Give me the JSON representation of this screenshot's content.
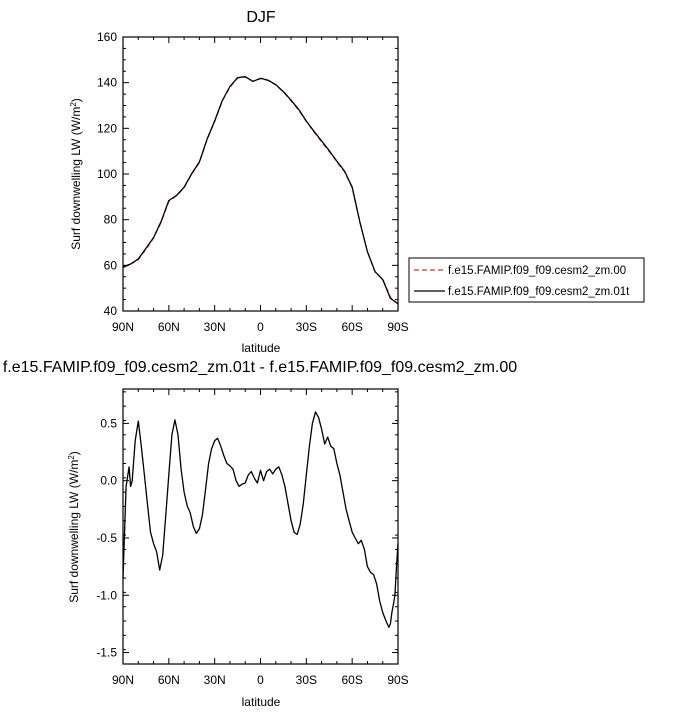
{
  "chart_data": [
    {
      "type": "line",
      "title": "DJF",
      "xlabel": "latitude",
      "ylabel": "Surf downwelling LW (W/m",
      "ylabel_sup": "2",
      "ylabel_close": ")",
      "x_ticks": [
        "90N",
        "60N",
        "30N",
        "0",
        "30S",
        "60S",
        "90S"
      ],
      "y_ticks": [
        "40",
        "60",
        "80",
        "100",
        "120",
        "140",
        "160"
      ],
      "xlim": [
        90,
        -90
      ],
      "ylim": [
        40,
        160
      ],
      "grid": false,
      "legend_position": "right",
      "series": [
        {
          "name": "f.e15.FAMIP.f09_f09.cesm2_zm.00",
          "color": "#e03030",
          "dash": "dashed",
          "x": [
            90,
            85,
            80,
            75,
            70,
            65,
            60,
            55,
            50,
            45,
            40,
            35,
            30,
            25,
            20,
            15,
            10,
            5,
            3,
            0,
            -5,
            -10,
            -15,
            -20,
            -25,
            -30,
            -35,
            -40,
            -45,
            -50,
            -55,
            -60,
            -65,
            -70,
            -75,
            -80,
            -85,
            -90
          ],
          "values": [
            59,
            60.5,
            62.5,
            67,
            72,
            79,
            88,
            90.5,
            94,
            100,
            105,
            115,
            123,
            132,
            138,
            142,
            142.5,
            140.5,
            141,
            141.8,
            141,
            139,
            136,
            132,
            128,
            123,
            118.5,
            114,
            109.8,
            105.3,
            101,
            94,
            79,
            66,
            57,
            54,
            46,
            43
          ]
        },
        {
          "name": "f.e15.FAMIP.f09_f09.cesm2_zm.01t",
          "color": "#000000",
          "dash": "solid",
          "x": [
            90,
            85,
            80,
            75,
            70,
            65,
            60,
            55,
            50,
            45,
            40,
            35,
            30,
            25,
            20,
            15,
            10,
            5,
            3,
            0,
            -5,
            -10,
            -15,
            -20,
            -25,
            -30,
            -35,
            -40,
            -45,
            -50,
            -55,
            -60,
            -65,
            -70,
            -75,
            -80,
            -85,
            -90
          ],
          "values": [
            59.3,
            60.6,
            62.8,
            67.4,
            72.2,
            79.3,
            88.4,
            90.6,
            94.2,
            100.2,
            105.3,
            115.2,
            123.3,
            132.2,
            138.3,
            142.2,
            142.6,
            140.6,
            141.1,
            141.9,
            141.1,
            139.1,
            136.1,
            132.3,
            128.3,
            123.2,
            118.7,
            114.5,
            110.2,
            105.6,
            101.3,
            94.2,
            79.1,
            66,
            57.2,
            53.8,
            45.5,
            43.2
          ]
        }
      ]
    },
    {
      "type": "line",
      "title": "f.e15.FAMIP.f09_f09.cesm2_zm.01t - f.e15.FAMIP.f09_f09.cesm2_zm.00",
      "xlabel": "latitude",
      "ylabel": "Surf downwelling LW (W/m",
      "ylabel_sup": "2",
      "ylabel_close": ")",
      "x_ticks": [
        "90N",
        "60N",
        "30N",
        "0",
        "30S",
        "60S",
        "90S"
      ],
      "y_ticks": [
        "-1.5",
        "-1.0",
        "-0.5",
        "0.0",
        "0.5"
      ],
      "xlim": [
        90,
        -90
      ],
      "ylim": [
        -1.6,
        0.8
      ],
      "grid": false,
      "series": [
        {
          "color": "#000000",
          "dash": "solid",
          "x": [
            90,
            88,
            86,
            85,
            84,
            82,
            80,
            78,
            76,
            74,
            72,
            70,
            68,
            66,
            64,
            62,
            60,
            58,
            56,
            54,
            52,
            50,
            48,
            46,
            44,
            42,
            40,
            38,
            36,
            34,
            32,
            30,
            28,
            26,
            24,
            22,
            20,
            18,
            16,
            14,
            12,
            10,
            8,
            6,
            4,
            2,
            0,
            -2,
            -4,
            -6,
            -8,
            -10,
            -12,
            -14,
            -16,
            -18,
            -20,
            -22,
            -24,
            -26,
            -28,
            -30,
            -32,
            -34,
            -36,
            -38,
            -40,
            -42,
            -44,
            -46,
            -48,
            -50,
            -52,
            -54,
            -56,
            -58,
            -60,
            -62,
            -64,
            -66,
            -68,
            -70,
            -72,
            -74,
            -76,
            -78,
            -80,
            -82,
            -84,
            -85,
            -86,
            -87,
            -88,
            -89,
            -90
          ],
          "values": [
            -0.85,
            -0.05,
            0.12,
            -0.05,
            0.0,
            0.35,
            0.52,
            0.3,
            0.05,
            -0.2,
            -0.45,
            -0.55,
            -0.62,
            -0.78,
            -0.65,
            -0.3,
            0.05,
            0.4,
            0.53,
            0.4,
            0.1,
            -0.1,
            -0.22,
            -0.28,
            -0.4,
            -0.46,
            -0.42,
            -0.3,
            -0.08,
            0.15,
            0.28,
            0.35,
            0.37,
            0.3,
            0.22,
            0.15,
            0.13,
            0.1,
            0.0,
            -0.05,
            -0.03,
            -0.02,
            0.05,
            0.08,
            0.02,
            -0.02,
            0.09,
            0.0,
            0.08,
            0.1,
            0.06,
            0.1,
            0.12,
            0.05,
            -0.05,
            -0.2,
            -0.35,
            -0.45,
            -0.47,
            -0.38,
            -0.2,
            0.05,
            0.3,
            0.5,
            0.6,
            0.55,
            0.45,
            0.32,
            0.38,
            0.3,
            0.28,
            0.15,
            0.05,
            -0.1,
            -0.25,
            -0.35,
            -0.45,
            -0.5,
            -0.55,
            -0.52,
            -0.6,
            -0.75,
            -0.8,
            -0.82,
            -0.9,
            -1.05,
            -1.15,
            -1.22,
            -1.28,
            -1.25,
            -1.15,
            -1.08,
            -1.0,
            -0.75,
            -0.55
          ]
        }
      ]
    }
  ]
}
